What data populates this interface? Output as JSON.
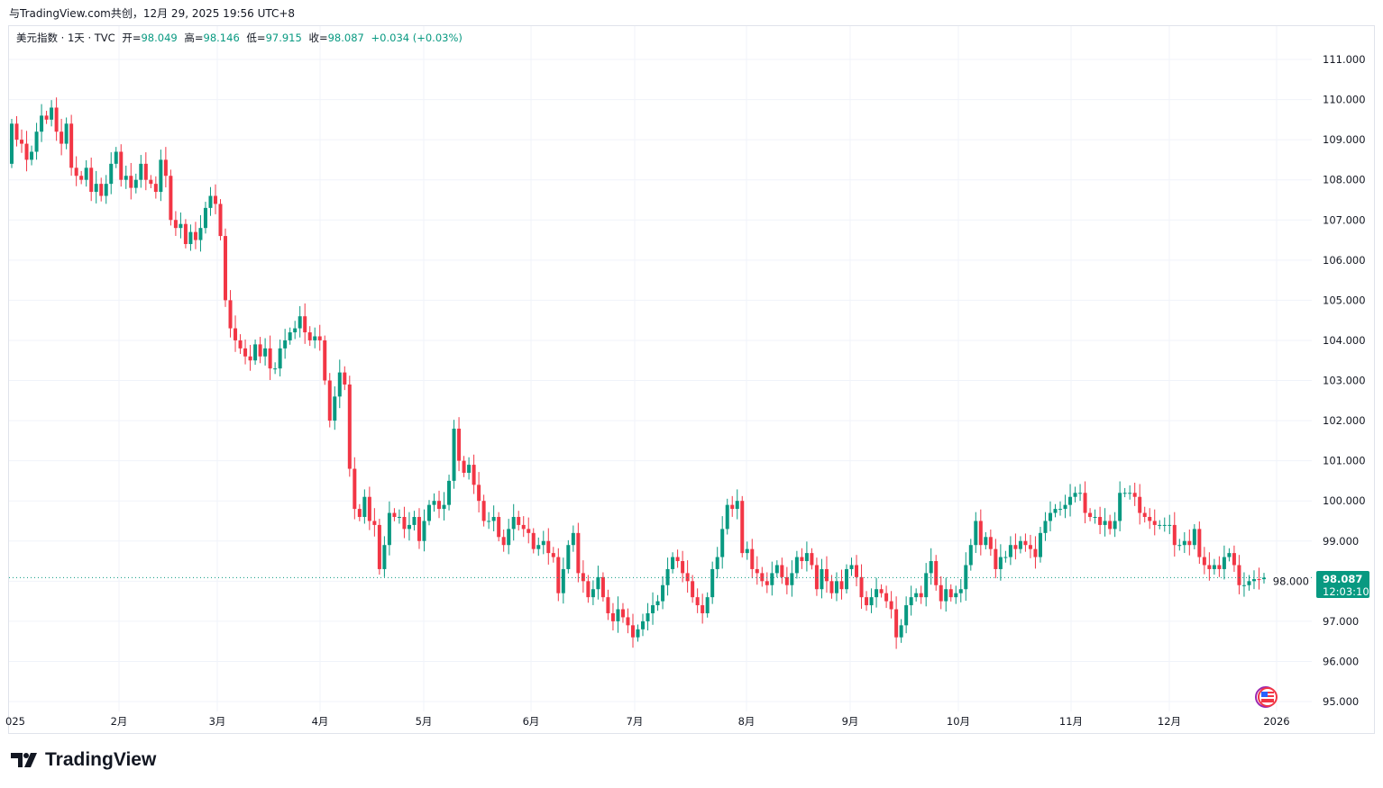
{
  "header": {
    "attribution": "与TradingView.com共创，12月 29, 2025 19:56 UTC+8"
  },
  "legend": {
    "symbol": "美元指数 · 1天 · TVC",
    "open_label": "开=",
    "open": "98.049",
    "high_label": "高=",
    "high": "98.146",
    "low_label": "低=",
    "low": "97.915",
    "close_label": "收=",
    "close": "98.087",
    "change": "+0.034 (+0.03%)"
  },
  "price_label": {
    "price": "98.087",
    "countdown": "12:03:10"
  },
  "brand": {
    "name": "TradingView"
  },
  "colors": {
    "up": "#089981",
    "down": "#f23645",
    "grid": "#f0f3fa"
  },
  "chart_data": {
    "type": "candlestick",
    "title": "美元指数 · 1天 · TVC",
    "ylim": [
      95,
      111
    ],
    "yticks": [
      "95.000",
      "96.000",
      "97.000",
      "98.000",
      "99.000",
      "100.000",
      "101.000",
      "102.000",
      "103.000",
      "104.000",
      "105.000",
      "106.000",
      "107.000",
      "108.000",
      "109.000",
      "110.000",
      "111.000"
    ],
    "xticks": [
      "025",
      "2月",
      "3月",
      "4月",
      "5月",
      "6月",
      "7月",
      "8月",
      "9月",
      "10月",
      "11月",
      "12月",
      "2026"
    ],
    "last_price": 98.087,
    "first_open": 108.4,
    "close": [
      109.4,
      109.0,
      108.9,
      108.5,
      108.7,
      109.2,
      109.6,
      109.5,
      109.8,
      109.2,
      108.9,
      109.4,
      108.3,
      108.1,
      108.0,
      108.3,
      107.7,
      107.9,
      107.6,
      107.9,
      108.4,
      108.7,
      108.0,
      108.1,
      107.8,
      108.0,
      108.4,
      108.0,
      107.9,
      107.7,
      108.5,
      108.1,
      107.0,
      106.8,
      106.9,
      106.4,
      106.7,
      106.5,
      106.8,
      107.3,
      107.6,
      107.4,
      106.6,
      105.0,
      104.3,
      104.0,
      103.8,
      103.6,
      103.5,
      103.9,
      103.6,
      103.8,
      103.3,
      103.3,
      103.8,
      104.0,
      104.2,
      104.3,
      104.6,
      104.2,
      104.0,
      104.1,
      104.0,
      103.0,
      102.0,
      102.6,
      103.2,
      102.9,
      100.8,
      99.8,
      99.6,
      100.1,
      99.5,
      99.4,
      98.3,
      98.9,
      99.7,
      99.6,
      99.6,
      99.3,
      99.4,
      99.6,
      99.0,
      99.5,
      99.9,
      100.0,
      99.8,
      99.9,
      100.5,
      101.8,
      101.0,
      100.7,
      100.9,
      100.4,
      100.0,
      99.5,
      99.5,
      99.6,
      99.1,
      98.9,
      99.3,
      99.6,
      99.4,
      99.3,
      99.2,
      98.8,
      98.9,
      99.0,
      98.7,
      98.6,
      97.7,
      98.3,
      98.9,
      99.2,
      98.2,
      98.0,
      97.6,
      97.8,
      98.1,
      97.6,
      97.2,
      97.0,
      97.3,
      97.1,
      96.9,
      96.6,
      96.8,
      97.0,
      97.2,
      97.4,
      97.5,
      97.9,
      98.3,
      98.6,
      98.5,
      98.2,
      98.0,
      97.6,
      97.4,
      97.2,
      97.6,
      98.3,
      98.6,
      99.3,
      99.9,
      99.8,
      100.0,
      98.7,
      98.8,
      98.3,
      98.2,
      98.0,
      97.9,
      98.2,
      98.4,
      98.1,
      97.9,
      98.2,
      98.6,
      98.5,
      98.7,
      98.4,
      97.8,
      98.3,
      98.0,
      97.7,
      98.0,
      97.8,
      98.3,
      98.4,
      98.1,
      97.6,
      97.4,
      97.6,
      97.8,
      97.7,
      97.5,
      97.3,
      96.6,
      96.9,
      97.4,
      97.6,
      97.7,
      97.6,
      98.2,
      98.5,
      97.9,
      97.5,
      97.8,
      97.6,
      97.7,
      97.8,
      98.4,
      98.9,
      99.5,
      98.9,
      99.1,
      98.8,
      98.3,
      98.6,
      98.6,
      98.9,
      98.8,
      99.0,
      98.9,
      98.8,
      98.6,
      99.2,
      99.5,
      99.7,
      99.8,
      99.8,
      99.9,
      100.1,
      100.2,
      100.2,
      99.7,
      99.6,
      99.6,
      99.4,
      99.5,
      99.3,
      99.5,
      100.2,
      100.2,
      100.2,
      100.1,
      99.7,
      99.6,
      99.5,
      99.4,
      99.4,
      99.4,
      99.4,
      98.9,
      98.9,
      99.0,
      98.9,
      99.3,
      98.6,
      98.4,
      98.3,
      98.4,
      98.3,
      98.6,
      98.7,
      98.4,
      97.9,
      97.9,
      98.0,
      98.05,
      98.049,
      98.087
    ]
  }
}
